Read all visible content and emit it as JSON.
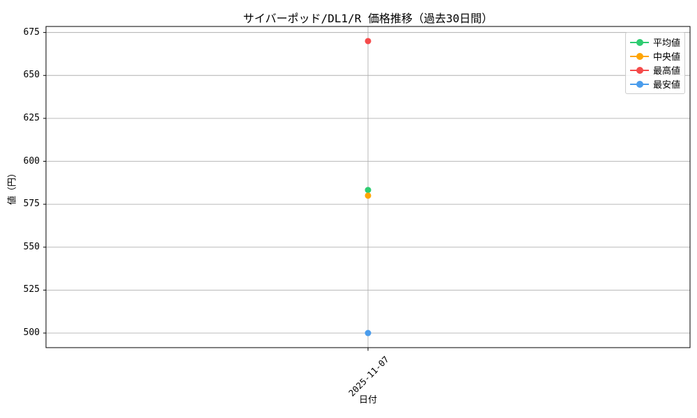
{
  "title": "サイバーポッド/DL1/R 価格推移（過去30日間）",
  "axes": {
    "xlabel": "日付",
    "ylabel": "値（円）",
    "x_tick_labels": [
      "2025-11-07"
    ],
    "y_ticks": [
      500,
      525,
      550,
      575,
      600,
      625,
      650,
      675
    ],
    "ylim": [
      491.5,
      678.5
    ]
  },
  "colors": {
    "grid": "#b0b0b0",
    "spine": "#000000",
    "legend_border": "#cccccc",
    "background": "#ffffff"
  },
  "legend": {
    "position": "upper right",
    "items": [
      {
        "label": "平均値",
        "color": "#2ecc71"
      },
      {
        "label": "中央値",
        "color": "#ffa502"
      },
      {
        "label": "最高値",
        "color": "#f54b4b"
      },
      {
        "label": "最安値",
        "color": "#4a9cec"
      }
    ]
  },
  "chart_data": {
    "type": "line",
    "title": "サイバーポッド/DL1/R 価格推移（過去30日間）",
    "xlabel": "日付",
    "ylabel": "値（円）",
    "x": [
      "2025-11-07"
    ],
    "series": [
      {
        "name": "平均値",
        "values": [
          583.3
        ],
        "color": "#2ecc71"
      },
      {
        "name": "中央値",
        "values": [
          580
        ],
        "color": "#ffa502"
      },
      {
        "name": "最高値",
        "values": [
          670
        ],
        "color": "#f54b4b"
      },
      {
        "name": "最安値",
        "values": [
          500
        ],
        "color": "#4a9cec"
      }
    ],
    "ylim": [
      491.5,
      678.5
    ],
    "y_ticks": [
      500,
      525,
      550,
      575,
      600,
      625,
      650,
      675
    ],
    "grid": true,
    "legend_position": "upper right"
  }
}
